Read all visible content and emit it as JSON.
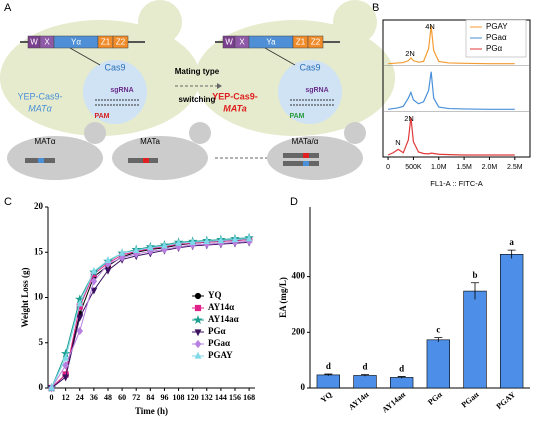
{
  "panels": [
    "A",
    "B",
    "C",
    "D"
  ],
  "diagram": {
    "left": {
      "genes": [
        "W",
        "X",
        "Yα",
        "Z1",
        "Z2"
      ],
      "cas9": "Cas9",
      "sgrna": "sgRNA",
      "pam": "PAM",
      "plasmid": "YEP-Cas9-",
      "plasmid_target": "MATα"
    },
    "arrow": [
      "Mating type",
      "switching"
    ],
    "right": {
      "genes": [
        "W",
        "X",
        "Ya",
        "Z1",
        "Z2"
      ],
      "cas9": "Cas9",
      "sgrna": "sgRNA",
      "pam": "PAM",
      "plasmid": "YEP-Cas9-",
      "plasmid_target": "MATa"
    },
    "cells": [
      "MATα",
      "×",
      "MATa",
      "MATa/α"
    ]
  },
  "chart_data": [
    {
      "type": "line",
      "x_label": "FL1-A :: FITC-A",
      "x": [
        0,
        100000,
        200000,
        300000,
        400000,
        450000,
        500000,
        600000,
        700000,
        800000,
        850000,
        900000,
        1000000,
        1200000,
        1500000,
        2000000,
        2500000
      ],
      "xlim": [
        -100000,
        2800000
      ],
      "xticks": [
        0,
        {
          "value": 500000,
          "label": "500K"
        },
        {
          "value": 1000000,
          "label": "1.0M"
        },
        {
          "value": 1500000,
          "label": "1.5M"
        },
        {
          "value": 2000000,
          "label": "2.0M"
        },
        {
          "value": 2500000,
          "label": "2.5M"
        }
      ],
      "series": [
        {
          "name": "PGAY",
          "color": "#f39c32",
          "values": [
            0,
            1,
            2,
            3,
            8,
            15,
            8,
            4,
            6,
            40,
            100,
            35,
            6,
            2,
            1,
            0,
            0
          ]
        },
        {
          "name": "PGaα",
          "color": "#4a90d9",
          "values": [
            0,
            2,
            4,
            8,
            30,
            45,
            25,
            15,
            20,
            50,
            100,
            30,
            6,
            2,
            1,
            0,
            0
          ]
        },
        {
          "name": "PGα",
          "color": "#e03a3a",
          "values": [
            0,
            6,
            15,
            6,
            40,
            100,
            35,
            8,
            4,
            3,
            5,
            4,
            2,
            1,
            0,
            0,
            0
          ]
        }
      ],
      "annotations": [
        "4N",
        "2N",
        "2N",
        "N"
      ],
      "legend": "top-right"
    },
    {
      "type": "line",
      "x_label": "Time (h)",
      "y_label": "Weight Loss (g)",
      "x": [
        0,
        12,
        24,
        36,
        48,
        60,
        72,
        84,
        96,
        108,
        120,
        132,
        144,
        156,
        168
      ],
      "xlim": [
        -3,
        173
      ],
      "xticks": [
        0,
        12,
        24,
        36,
        48,
        60,
        72,
        84,
        96,
        108,
        120,
        132,
        144,
        156,
        168
      ],
      "ylim": [
        0,
        20
      ],
      "yticks": [
        0,
        5,
        10,
        15,
        20
      ],
      "series": [
        {
          "name": "YQ",
          "color": "#000000",
          "marker": "circle",
          "values": [
            0,
            1.5,
            8.2,
            12.3,
            13.5,
            14.5,
            15,
            15.3,
            15.5,
            15.8,
            16,
            16.1,
            16.2,
            16.3,
            16.4
          ]
        },
        {
          "name": "AY14α",
          "color": "#e0228a",
          "marker": "square",
          "values": [
            0,
            1.5,
            9,
            12.6,
            13.8,
            14.7,
            15.1,
            15.4,
            15.6,
            15.9,
            16,
            16.1,
            16.2,
            16.3,
            16.4
          ]
        },
        {
          "name": "AY14aα",
          "color": "#1a9e8f",
          "marker": "star",
          "values": [
            0,
            3.8,
            9.8,
            12.8,
            14,
            14.9,
            15.3,
            15.6,
            15.8,
            16.1,
            16.2,
            16.3,
            16.4,
            16.5,
            16.6
          ]
        },
        {
          "name": "PGα",
          "color": "#3a1060",
          "marker": "triangle-down",
          "values": [
            0,
            1.2,
            7.8,
            10.8,
            13,
            14.2,
            14.6,
            14.9,
            15.2,
            15.5,
            15.7,
            15.8,
            15.9,
            16,
            16.1
          ]
        },
        {
          "name": "PGaα",
          "color": "#b77fe0",
          "marker": "diamond",
          "values": [
            0,
            2.5,
            6.3,
            11.8,
            13.7,
            14.4,
            14.8,
            15.1,
            15.3,
            15.6,
            15.8,
            15.9,
            16,
            16.1,
            16.2
          ]
        },
        {
          "name": "PGAY",
          "color": "#7fd8e8",
          "marker": "triangle",
          "values": [
            0,
            3.3,
            9.3,
            12.9,
            14.1,
            14.9,
            15.2,
            15.5,
            15.7,
            16,
            16.1,
            16.2,
            16.3,
            16.4,
            16.5
          ]
        }
      ],
      "legend": "center-right"
    },
    {
      "type": "bar",
      "y_label": "EA (mg/L)",
      "categories": [
        "YQ",
        "AY14α",
        "AY14aα",
        "PGα",
        "PGaα",
        "PGAY"
      ],
      "values": [
        47,
        45,
        38,
        173,
        348,
        480
      ],
      "errors": [
        3,
        3,
        3,
        8,
        30,
        15
      ],
      "annotations": [
        "d",
        "d",
        "d",
        "c",
        "b",
        "a"
      ],
      "color": "#4d8fe8",
      "ylim": [
        0,
        650
      ],
      "yticks": [
        0,
        200,
        400
      ]
    }
  ]
}
